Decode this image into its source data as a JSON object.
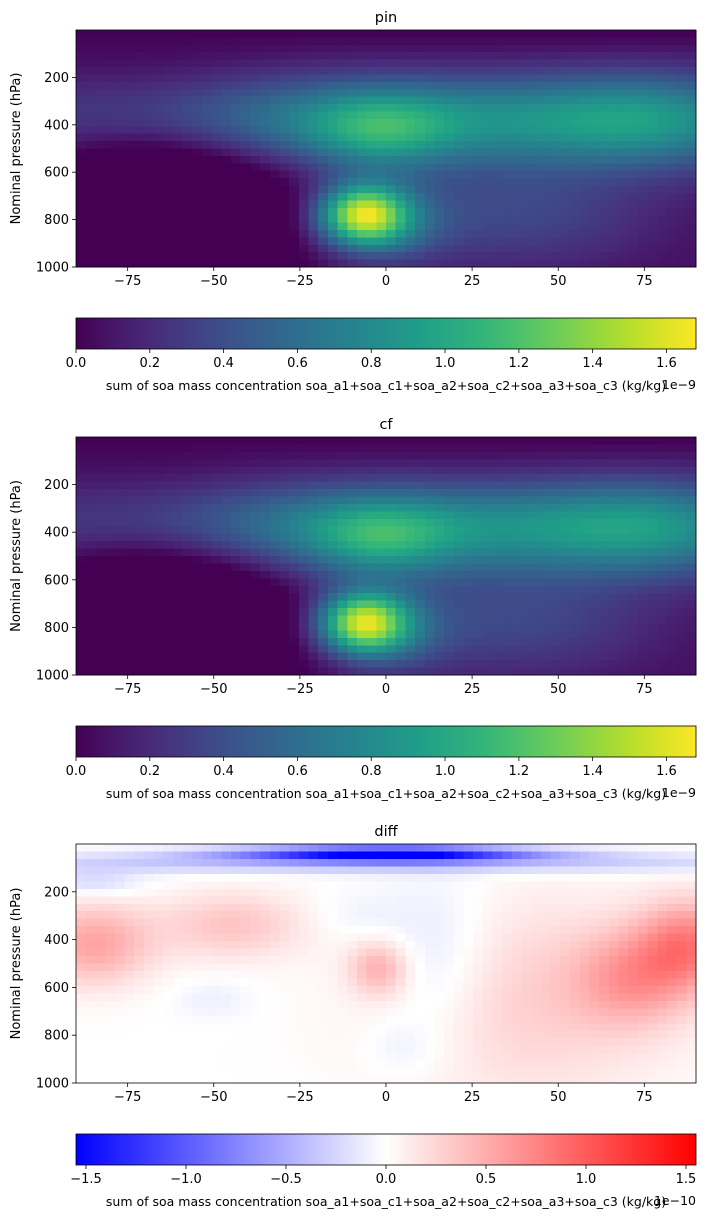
{
  "chart_data": [
    {
      "type": "heatmap",
      "title": "pin",
      "xlabel": "",
      "ylabel": "Nominal pressure (hPa)",
      "xlim": [
        -90,
        90
      ],
      "ylim": [
        1000,
        0
      ],
      "xticks": [
        -75,
        -50,
        -25,
        0,
        25,
        50,
        75
      ],
      "xtick_labels": [
        "−75",
        "−50",
        "−25",
        "0",
        "25",
        "50",
        "75"
      ],
      "yticks": [
        200,
        400,
        600,
        800,
        1000
      ],
      "ytick_labels": [
        "200",
        "400",
        "600",
        "800",
        "1000"
      ],
      "colormap": "viridis",
      "vmin": 0.0,
      "vmax": 1.68,
      "colorbar": {
        "orientation": "horizontal",
        "ticks": [
          0.0,
          0.2,
          0.4,
          0.6,
          0.8,
          1.0,
          1.2,
          1.4,
          1.6
        ],
        "tick_labels": [
          "0.0",
          "0.2",
          "0.4",
          "0.6",
          "0.8",
          "1.0",
          "1.2",
          "1.4",
          "1.6"
        ],
        "label": "sum of soa mass concentration soa_a1+soa_c1+soa_a2+soa_c2+soa_a3+soa_c3 (kg/kg)",
        "offset_text": "1e−9"
      },
      "features": [
        {
          "kind": "peak",
          "lat": -7,
          "pressure": 780,
          "value": 1.68
        },
        {
          "kind": "peak",
          "lat": -2,
          "pressure": 400,
          "value": 0.95
        },
        {
          "kind": "band",
          "pressure_top": 250,
          "pressure_bottom": 550,
          "value": 0.85
        },
        {
          "kind": "minimum",
          "lat": -65,
          "pressure": 700,
          "value": 0.05
        },
        {
          "kind": "top_layer",
          "pressure": 50,
          "value": 0.05
        }
      ]
    },
    {
      "type": "heatmap",
      "title": "cf",
      "xlabel": "",
      "ylabel": "Nominal pressure (hPa)",
      "xlim": [
        -90,
        90
      ],
      "ylim": [
        1000,
        0
      ],
      "xticks": [
        -75,
        -50,
        -25,
        0,
        25,
        50,
        75
      ],
      "xtick_labels": [
        "−75",
        "−50",
        "−25",
        "0",
        "25",
        "50",
        "75"
      ],
      "yticks": [
        200,
        400,
        600,
        800,
        1000
      ],
      "ytick_labels": [
        "200",
        "400",
        "600",
        "800",
        "1000"
      ],
      "colormap": "viridis",
      "vmin": 0.0,
      "vmax": 1.68,
      "colorbar": {
        "orientation": "horizontal",
        "ticks": [
          0.0,
          0.2,
          0.4,
          0.6,
          0.8,
          1.0,
          1.2,
          1.4,
          1.6
        ],
        "tick_labels": [
          "0.0",
          "0.2",
          "0.4",
          "0.6",
          "0.8",
          "1.0",
          "1.2",
          "1.4",
          "1.6"
        ],
        "label": "sum of soa mass concentration soa_a1+soa_c1+soa_a2+soa_c2+soa_a3+soa_c3 (kg/kg)",
        "offset_text": "1e−9"
      },
      "features": [
        {
          "kind": "peak",
          "lat": -8,
          "pressure": 775,
          "value": 1.66
        },
        {
          "kind": "peak",
          "lat": -2,
          "pressure": 400,
          "value": 0.9
        },
        {
          "kind": "band",
          "pressure_top": 250,
          "pressure_bottom": 550,
          "value": 0.8
        },
        {
          "kind": "minimum",
          "lat": -65,
          "pressure": 700,
          "value": 0.05
        },
        {
          "kind": "top_layer",
          "pressure": 50,
          "value": 0.05
        }
      ]
    },
    {
      "type": "heatmap",
      "title": "diff",
      "xlabel": "",
      "ylabel": "Nominal pressure (hPa)",
      "xlim": [
        -90,
        90
      ],
      "ylim": [
        1000,
        0
      ],
      "xticks": [
        -75,
        -50,
        -25,
        0,
        25,
        50,
        75
      ],
      "xtick_labels": [
        "−75",
        "−50",
        "−25",
        "0",
        "25",
        "50",
        "75"
      ],
      "yticks": [
        200,
        400,
        600,
        800,
        1000
      ],
      "ytick_labels": [
        "200",
        "400",
        "600",
        "800",
        "1000"
      ],
      "colormap": "bwr",
      "vmin": -1.55,
      "vmax": 1.55,
      "colorbar": {
        "orientation": "horizontal",
        "ticks": [
          -1.5,
          -1.0,
          -0.5,
          0.0,
          0.5,
          1.0,
          1.5
        ],
        "tick_labels": [
          "−1.5",
          "−1.0",
          "−0.5",
          "0.0",
          "0.5",
          "1.0",
          "1.5"
        ],
        "label": "sum of soa mass concentration soa_a1+soa_c1+soa_a2+soa_c2+soa_a3+soa_c3 (kg/kg)",
        "offset_text": "1e−10"
      },
      "features": [
        {
          "kind": "negative_band",
          "lat": 0,
          "pressure": 40,
          "value": -1.55
        },
        {
          "kind": "positive_region",
          "lat": -85,
          "pressure": 420,
          "value": 0.55
        },
        {
          "kind": "positive_region",
          "lat": 88,
          "pressure": 420,
          "value": 0.7
        },
        {
          "kind": "positive_region",
          "lat": 72,
          "pressure": 560,
          "value": 0.5
        },
        {
          "kind": "positive_region",
          "lat": -2,
          "pressure": 520,
          "value": 0.45
        },
        {
          "kind": "negative_region",
          "lat": 15,
          "pressure": 500,
          "value": -0.25
        },
        {
          "kind": "negative_region",
          "lat": -8,
          "pressure": 300,
          "value": -0.1
        }
      ]
    }
  ]
}
